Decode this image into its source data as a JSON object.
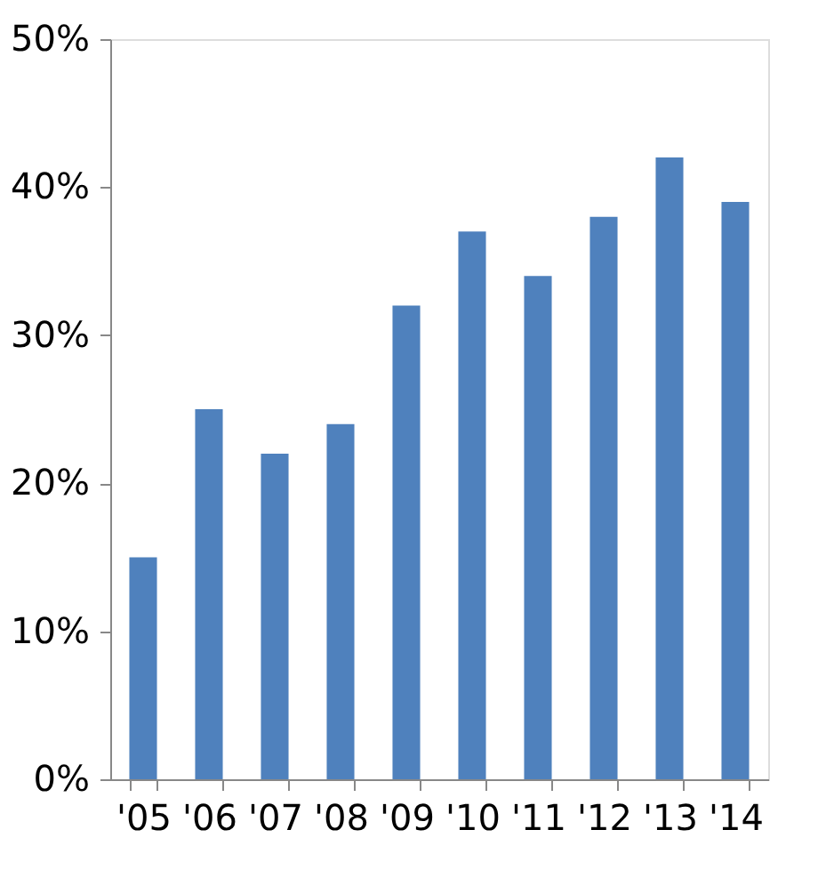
{
  "chart_data": {
    "type": "bar",
    "categories": [
      "'05",
      "'06",
      "'07",
      "'08",
      "'09",
      "'10",
      "'11",
      "'12",
      "'13",
      "'14"
    ],
    "values": [
      15,
      25,
      22,
      24,
      32,
      37,
      34,
      38,
      42,
      39
    ],
    "color": "#4f81bd",
    "ylim": [
      0,
      50
    ],
    "yticks": [
      {
        "value": 0,
        "label": "0%"
      },
      {
        "value": 10,
        "label": "10%"
      },
      {
        "value": 20,
        "label": "20%"
      },
      {
        "value": 30,
        "label": "30%"
      },
      {
        "value": 40,
        "label": "40%"
      },
      {
        "value": 50,
        "label": "50%"
      }
    ],
    "grid": false
  }
}
